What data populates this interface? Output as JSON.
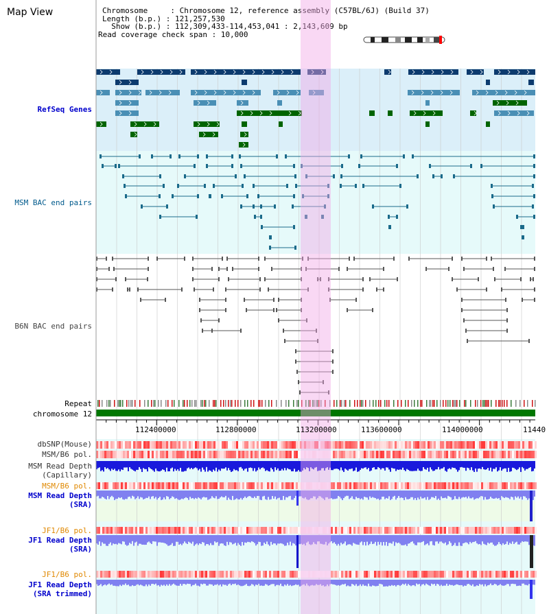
{
  "header": {
    "title": "Map View",
    "chromosome_line": "Chromosome     : Chromosome 12, reference assembly (C57BL/6J) (Build 37)",
    "length_line": "Length (b.p.) : 121,257,530",
    "show_line": "  Show (b.p.) : 112,309,433-114,453,041 : 2,143,609 bp",
    "coverage_line": "Read coverage check span : 10,000"
  },
  "tracks": {
    "refseq": "RefSeq Genes",
    "msm_bac": "MSM BAC end pairs",
    "b6n_bac": "B6N BAC end pairs",
    "repeat": "Repeat",
    "chromosome": "chromosome 12",
    "dbsnp": "dbSNP(Mouse)",
    "msm_b6_pol": "MSM/B6 pol.",
    "msm_depth_cap_1": "MSM Read Depth",
    "msm_depth_cap_2": "(Capillary)",
    "msm_b6_pol_2": "MSM/B6 pol.",
    "msm_depth_sra_1": "MSM Read Depth",
    "msm_depth_sra_2": "(SRA)",
    "jf1_b6_pol": "JF1/B6 pol.",
    "jf1_depth_sra_1": "JF1 Read Depth",
    "jf1_depth_sra_2": "(SRA)",
    "jf1_b6_pol_2": "JF1/B6 pol.",
    "jf1_depth_trim_1": "JF1 Read Depth",
    "jf1_depth_trim_2": "(SRA trimmed)"
  },
  "axis": {
    "ticks": [
      "112400000",
      "112800000",
      "113200000",
      "113600000",
      "114000000",
      "11440"
    ]
  },
  "colors": {
    "refseq_bg": "#dbeff9",
    "bac_bg": "#e6fafa",
    "highlight": "#f5c8ee",
    "gene_dark": "#0d3b6e",
    "gene_mid": "#4a8fb5",
    "gene_green": "#006400",
    "msm_line": "#1a6a8a",
    "b6n_line": "#555555",
    "chromosome": "#007700",
    "depth_capillary": "#1a1adc",
    "depth_sra": "#8080f0"
  }
}
